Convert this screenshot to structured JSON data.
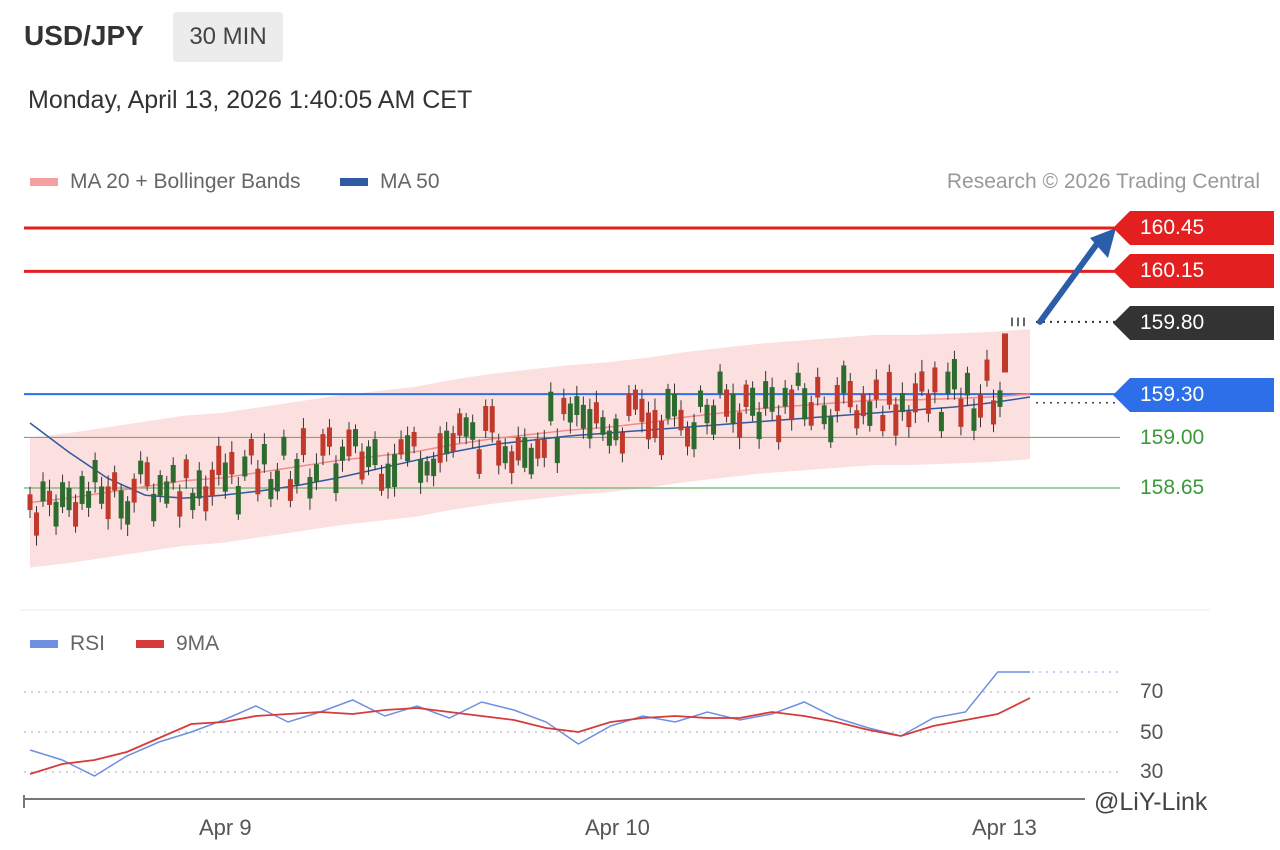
{
  "header": {
    "symbol": "USD/JPY",
    "timeframe": "30 MIN"
  },
  "timestamp": "Monday, April 13, 2026 1:40:05 AM CET",
  "legend": {
    "ma20_label": "MA 20 + Bollinger Bands",
    "ma50_label": "MA 50",
    "credit": "Research © 2026 Trading Central"
  },
  "levels": {
    "resistance_2": "160.45",
    "resistance_1": "160.15",
    "last_price": "159.80",
    "pivot": "159.30",
    "support_1": "159.00",
    "support_2": "158.65"
  },
  "rsi_panel": {
    "rsi_label": "RSI",
    "ma_label": "9MA",
    "levels": [
      "70",
      "50",
      "30"
    ]
  },
  "x_axis": {
    "labels": [
      "Apr 9",
      "Apr 10",
      "Apr 13"
    ]
  },
  "watermark": "@LiY-Link",
  "colors": {
    "resistance": "#e41f1f",
    "pivot": "#2d6fe8",
    "support": "#6ab46a",
    "last_price": "#333333",
    "ma20": "#f08c8c",
    "ma50": "#2d5aa0",
    "candle_up": "#c0392b",
    "candle_down": "#2e6b2e",
    "rsi": "#6f8fe0",
    "rsi_ma": "#d63b3b"
  },
  "chart_data": [
    {
      "type": "line",
      "title": "USD/JPY 30 MIN",
      "series": [
        {
          "name": "MA 20 + Bollinger Bands",
          "values": [
            158.55,
            158.58,
            158.62,
            158.66,
            158.7,
            158.72,
            158.76,
            158.8,
            158.84,
            158.87,
            158.9,
            158.95,
            158.99,
            159.02,
            159.05,
            159.07,
            159.1,
            159.14,
            159.17,
            159.2,
            159.22,
            159.24,
            159.26,
            159.26,
            159.27,
            159.28,
            159.3
          ]
        },
        {
          "name": "MA 50",
          "values": [
            159.1,
            158.9,
            158.72,
            158.6,
            158.58,
            158.6,
            158.63,
            158.67,
            158.72,
            158.78,
            158.84,
            158.9,
            158.95,
            158.98,
            159.01,
            159.03,
            159.05,
            159.07,
            159.09,
            159.11,
            159.13,
            159.15,
            159.17,
            159.19,
            159.21,
            159.24,
            159.28
          ]
        }
      ],
      "levels": [
        160.45,
        160.15,
        159.8,
        159.3,
        159.0,
        158.65
      ],
      "x_labels": [
        "Apr 9",
        "Apr 10",
        "Apr 13"
      ],
      "ylim": [
        158.2,
        160.6
      ]
    },
    {
      "type": "line",
      "title": "RSI",
      "series": [
        {
          "name": "RSI",
          "values": [
            41,
            36,
            28,
            38,
            45,
            50,
            56,
            63,
            55,
            60,
            66,
            58,
            63,
            57,
            65,
            61,
            55,
            44,
            53,
            58,
            55,
            60,
            56,
            59,
            65,
            57,
            52,
            48,
            57,
            60,
            80,
            80
          ]
        },
        {
          "name": "9MA",
          "values": [
            29,
            34,
            36,
            40,
            47,
            54,
            55,
            58,
            59,
            60,
            59,
            61,
            62,
            60,
            58,
            56,
            52,
            50,
            55,
            57,
            58,
            57,
            57,
            60,
            58,
            55,
            51,
            48,
            53,
            56,
            59,
            67
          ]
        }
      ],
      "levels": [
        70,
        50,
        30
      ],
      "ylim": [
        20,
        90
      ]
    }
  ]
}
